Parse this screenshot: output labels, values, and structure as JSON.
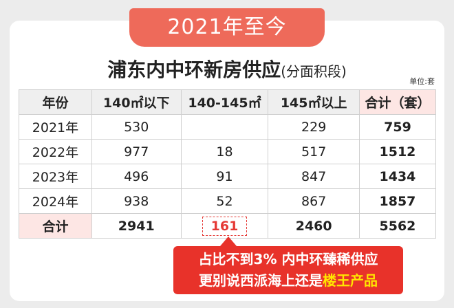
{
  "header": {
    "banner": "2021年至今",
    "title": "浦东内中环新房供应",
    "subtitle": "(分面积段)",
    "unit": "单位:套"
  },
  "table": {
    "columns": [
      "年份",
      "140㎡以下",
      "140-145㎡",
      "145㎡以上",
      "合计（套）"
    ],
    "rows": [
      [
        "2021年",
        "530",
        null,
        "229",
        "759"
      ],
      [
        "2022年",
        "977",
        "18",
        "517",
        "1512"
      ],
      [
        "2023年",
        "496",
        "91",
        "847",
        "1434"
      ],
      [
        "2024年",
        "938",
        "52",
        "867",
        "1857"
      ],
      [
        "合计",
        "2941",
        "161",
        "2460",
        "5562"
      ]
    ]
  },
  "callout": {
    "line1": "占比不到3%  内中环臻稀供应",
    "line2": "更别说西派海上还是",
    "highlight": "楼王产品"
  }
}
